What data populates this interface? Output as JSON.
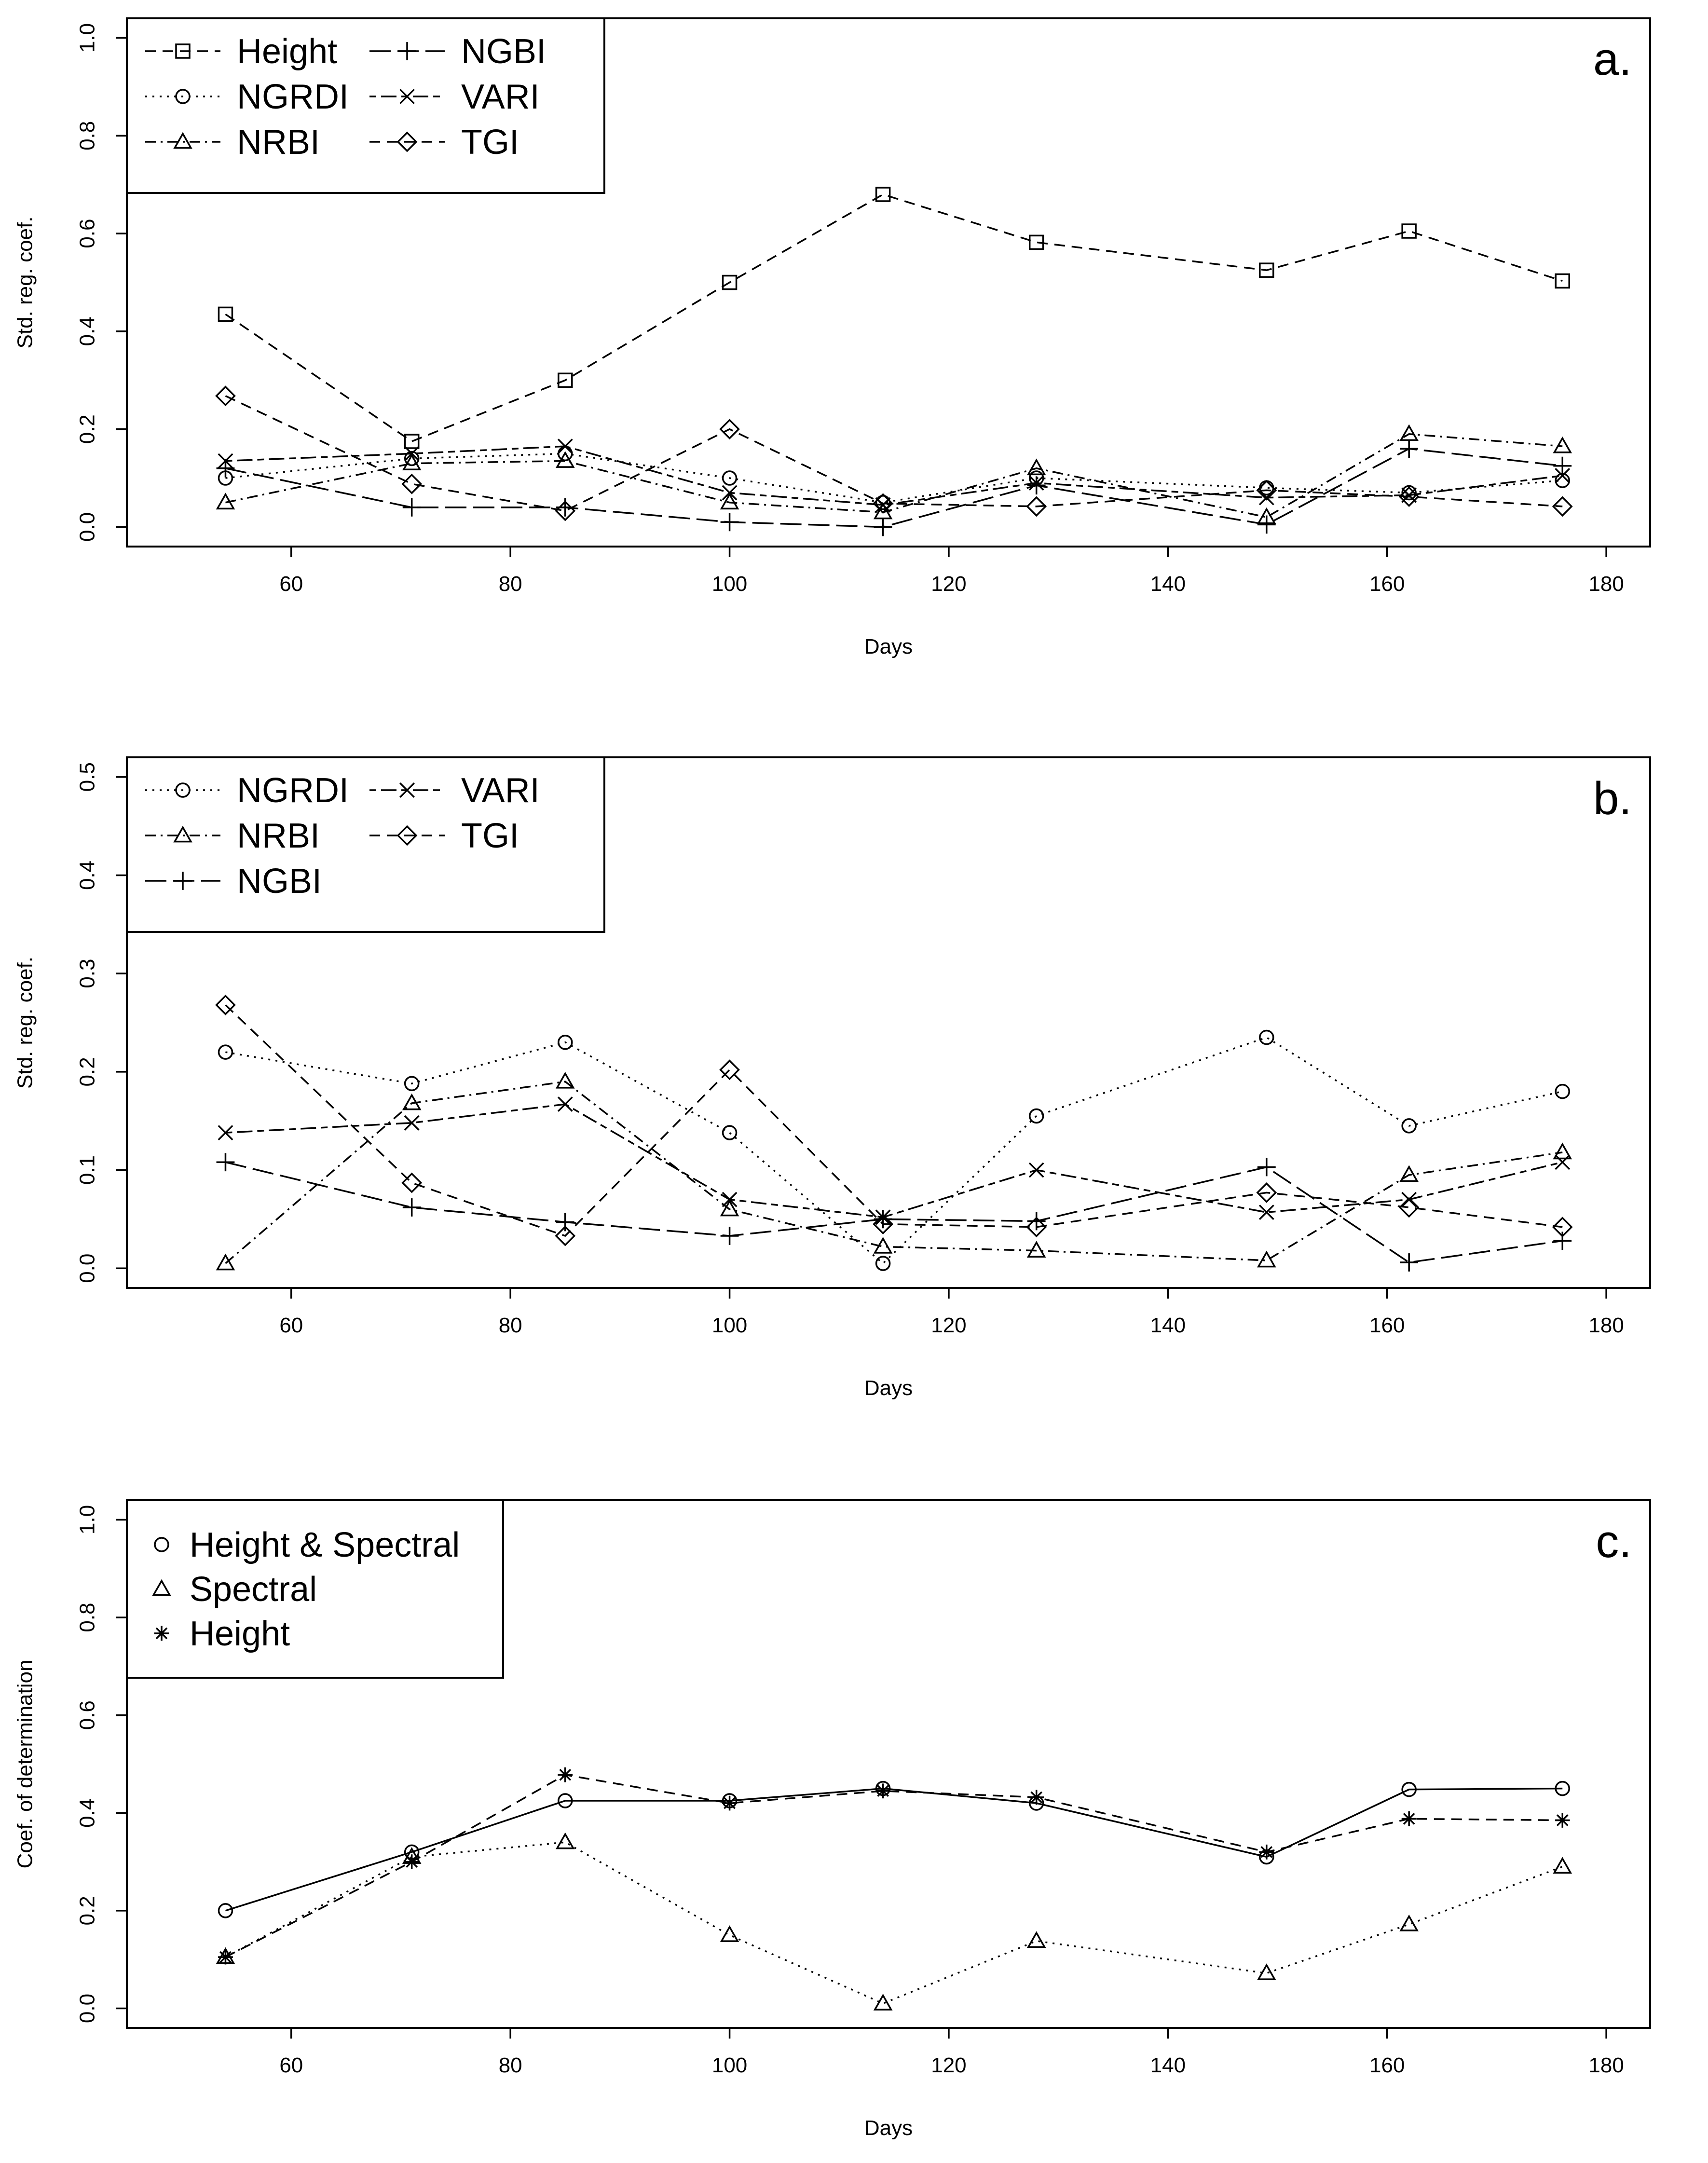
{
  "chart_data": [
    {
      "type": "line",
      "panel_label": "a.",
      "xlabel": "Days",
      "ylabel": "Std. reg. coef.",
      "xlim": [
        45,
        184
      ],
      "ylim": [
        -0.04,
        1.04
      ],
      "xticks": [
        60,
        80,
        100,
        120,
        140,
        160,
        180
      ],
      "yticks": [
        0.0,
        0.2,
        0.4,
        0.6,
        0.8,
        1.0
      ],
      "ytick_labels": [
        "0.0",
        "0.2",
        "0.4",
        "0.6",
        "0.8",
        "1.0"
      ],
      "grid": false,
      "legend": {
        "placement": "top-left",
        "columns": 2
      },
      "x": [
        54,
        71,
        85,
        100,
        114,
        128,
        149,
        162,
        176
      ],
      "series": [
        {
          "name": "Height",
          "marker": "square",
          "dash": "dashed",
          "values": [
            0.435,
            0.175,
            0.3,
            0.5,
            0.68,
            0.582,
            0.525,
            0.605,
            0.503
          ]
        },
        {
          "name": "NGRDI",
          "marker": "circle",
          "dash": "dotted",
          "values": [
            0.1,
            0.14,
            0.15,
            0.1,
            0.05,
            0.1,
            0.08,
            0.07,
            0.095
          ]
        },
        {
          "name": "NRBI",
          "marker": "triangle",
          "dash": "dashdot",
          "values": [
            0.05,
            0.13,
            0.135,
            0.05,
            0.03,
            0.12,
            0.02,
            0.19,
            0.165
          ]
        },
        {
          "name": "NGBI",
          "marker": "plus",
          "dash": "longdash",
          "values": [
            0.12,
            0.04,
            0.04,
            0.01,
            0.0,
            0.085,
            0.005,
            0.16,
            0.125
          ]
        },
        {
          "name": "VARI",
          "marker": "x",
          "dash": "twodash",
          "values": [
            0.135,
            0.15,
            0.165,
            0.07,
            0.045,
            0.09,
            0.06,
            0.065,
            0.105
          ]
        },
        {
          "name": "TGI",
          "marker": "diamond",
          "dash": "dashed",
          "values": [
            0.268,
            0.088,
            0.033,
            0.2,
            0.048,
            0.042,
            0.075,
            0.062,
            0.042
          ]
        }
      ]
    },
    {
      "type": "line",
      "panel_label": "b.",
      "xlabel": "Days",
      "ylabel": "Std. reg. coef.",
      "xlim": [
        45,
        184
      ],
      "ylim": [
        -0.02,
        0.52
      ],
      "xticks": [
        60,
        80,
        100,
        120,
        140,
        160,
        180
      ],
      "yticks": [
        0.0,
        0.1,
        0.2,
        0.3,
        0.4,
        0.5
      ],
      "ytick_labels": [
        "0.0",
        "0.1",
        "0.2",
        "0.3",
        "0.4",
        "0.5"
      ],
      "grid": false,
      "legend": {
        "placement": "top-left",
        "columns": 2
      },
      "x": [
        54,
        71,
        85,
        100,
        114,
        128,
        149,
        162,
        176
      ],
      "series": [
        {
          "name": "NGRDI",
          "marker": "circle",
          "dash": "dotted",
          "values": [
            0.22,
            0.188,
            0.23,
            0.138,
            0.005,
            0.155,
            0.235,
            0.145,
            0.18
          ]
        },
        {
          "name": "NRBI",
          "marker": "triangle",
          "dash": "dashdot",
          "values": [
            0.005,
            0.168,
            0.19,
            0.06,
            0.022,
            0.018,
            0.008,
            0.095,
            0.118
          ]
        },
        {
          "name": "NGBI",
          "marker": "plus",
          "dash": "longdash",
          "values": [
            0.108,
            0.062,
            0.047,
            0.033,
            0.05,
            0.048,
            0.103,
            0.006,
            0.028
          ]
        },
        {
          "name": "VARI",
          "marker": "x",
          "dash": "twodash",
          "values": [
            0.138,
            0.148,
            0.167,
            0.07,
            0.052,
            0.1,
            0.057,
            0.07,
            0.108
          ]
        },
        {
          "name": "TGI",
          "marker": "diamond",
          "dash": "dashed",
          "values": [
            0.268,
            0.087,
            0.033,
            0.202,
            0.045,
            0.042,
            0.077,
            0.062,
            0.042
          ]
        }
      ]
    },
    {
      "type": "line",
      "panel_label": "c.",
      "xlabel": "Days",
      "ylabel": "Coef. of determination",
      "xlim": [
        45,
        184
      ],
      "ylim": [
        -0.04,
        1.04
      ],
      "xticks": [
        60,
        80,
        100,
        120,
        140,
        160,
        180
      ],
      "yticks": [
        0.0,
        0.2,
        0.4,
        0.6,
        0.8,
        1.0
      ],
      "ytick_labels": [
        "0.0",
        "0.2",
        "0.4",
        "0.6",
        "0.8",
        "1.0"
      ],
      "grid": false,
      "legend": {
        "placement": "top-left",
        "columns": 1
      },
      "x": [
        54,
        71,
        85,
        100,
        114,
        128,
        149,
        162,
        176
      ],
      "series": [
        {
          "name": "Height & Spectral",
          "marker": "circle",
          "dash": "solid",
          "values": [
            0.2,
            0.32,
            0.425,
            0.425,
            0.45,
            0.42,
            0.31,
            0.448,
            0.45
          ]
        },
        {
          "name": "Spectral",
          "marker": "triangle",
          "dash": "dotted",
          "values": [
            0.105,
            0.31,
            0.34,
            0.15,
            0.01,
            0.138,
            0.072,
            0.172,
            0.29
          ]
        },
        {
          "name": "Height",
          "marker": "asterisk",
          "dash": "dashed",
          "values": [
            0.105,
            0.3,
            0.478,
            0.42,
            0.445,
            0.432,
            0.32,
            0.388,
            0.385
          ]
        }
      ]
    }
  ]
}
